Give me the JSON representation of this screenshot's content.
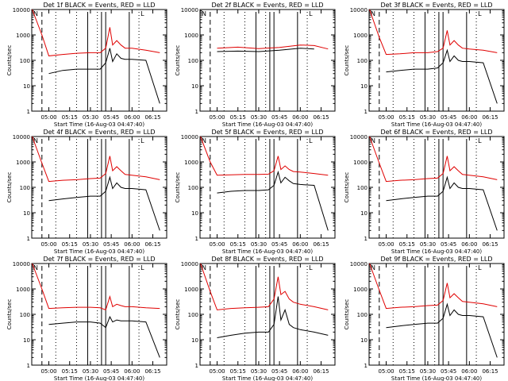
{
  "figure": {
    "x_ticks": [
      "05:00",
      "05:15",
      "05:30",
      "05:45",
      "06:00",
      "06:15"
    ],
    "y_ticks": [
      "1",
      "10",
      "100",
      "1000",
      "10000"
    ],
    "ylabel": "Counts/sec",
    "xlabel": "Start Time (16-Aug-03 04:47:40)",
    "corner_marks": [
      "N",
      "L"
    ],
    "colors": {
      "events": "#000000",
      "lld": "#e00000",
      "axes": "#000000"
    }
  },
  "chart_data": [
    {
      "type": "line",
      "title": "Det 1f BLACK = Events, RED = LLD",
      "xlabel": "Start Time (16-Aug-03 04:47:40)",
      "ylabel": "Counts/sec",
      "ylog": true,
      "ylim": [
        1,
        10000
      ],
      "xlim": [
        "04:47:40",
        "06:25:00"
      ],
      "x": [
        "04:48",
        "04:55",
        "05:00",
        "05:10",
        "05:20",
        "05:30",
        "05:37",
        "05:41",
        "05:44",
        "05:46",
        "05:49",
        "05:52",
        "05:55",
        "06:00",
        "06:10",
        "06:20"
      ],
      "series": [
        {
          "name": "BLACK = Events",
          "values": [
            null,
            null,
            30,
            40,
            45,
            45,
            45,
            80,
            300,
            90,
            180,
            120,
            110,
            110,
            100,
            2
          ]
        },
        {
          "name": "RED = LLD",
          "values": [
            10000,
            1000,
            150,
            170,
            190,
            200,
            200,
            300,
            2000,
            400,
            600,
            400,
            300,
            300,
            250,
            200
          ]
        }
      ]
    },
    {
      "type": "line",
      "title": "Det 2f BLACK = Events, RED = LLD",
      "xlabel": "Start Time (16-Aug-03 04:47:40)",
      "ylabel": "Counts/sec",
      "ylog": true,
      "ylim": [
        1,
        10000
      ],
      "xlim": [
        "04:47:40",
        "06:25:00"
      ],
      "x": [
        "04:48",
        "05:00",
        "05:15",
        "05:30",
        "05:45",
        "06:00",
        "06:10",
        "06:20"
      ],
      "series": [
        {
          "name": "BLACK = Events",
          "values": [
            null,
            220,
            230,
            220,
            250,
            300,
            280,
            null
          ]
        },
        {
          "name": "RED = LLD",
          "values": [
            null,
            300,
            330,
            290,
            320,
            400,
            380,
            280
          ]
        }
      ]
    },
    {
      "type": "line",
      "title": "Det 3f BLACK = Events, RED = LLD",
      "xlabel": "Start Time (16-Aug-03 04:47:40)",
      "ylabel": "Counts/sec",
      "ylog": true,
      "ylim": [
        1,
        10000
      ],
      "xlim": [
        "04:47:40",
        "06:25:00"
      ],
      "x": [
        "04:48",
        "04:55",
        "05:00",
        "05:10",
        "05:20",
        "05:30",
        "05:37",
        "05:41",
        "05:44",
        "05:46",
        "05:49",
        "05:52",
        "05:55",
        "06:00",
        "06:10",
        "06:20"
      ],
      "series": [
        {
          "name": "BLACK = Events",
          "values": [
            null,
            null,
            35,
            40,
            45,
            45,
            50,
            80,
            250,
            90,
            150,
            100,
            90,
            90,
            80,
            2
          ]
        },
        {
          "name": "RED = LLD",
          "values": [
            10000,
            800,
            170,
            180,
            200,
            200,
            220,
            300,
            1500,
            400,
            600,
            400,
            300,
            280,
            250,
            200
          ]
        }
      ]
    },
    {
      "type": "line",
      "title": "Det 4f BLACK = Events, RED = LLD",
      "xlabel": "Start Time (16-Aug-03 04:47:40)",
      "ylabel": "Counts/sec",
      "ylog": true,
      "ylim": [
        1,
        10000
      ],
      "xlim": [
        "04:47:40",
        "06:25:00"
      ],
      "x": [
        "04:48",
        "04:55",
        "05:00",
        "05:10",
        "05:20",
        "05:30",
        "05:37",
        "05:41",
        "05:44",
        "05:46",
        "05:49",
        "05:52",
        "05:55",
        "06:00",
        "06:10",
        "06:20"
      ],
      "series": [
        {
          "name": "BLACK = Events",
          "values": [
            null,
            null,
            30,
            35,
            40,
            45,
            45,
            70,
            250,
            90,
            150,
            100,
            90,
            90,
            80,
            2
          ]
        },
        {
          "name": "RED = LLD",
          "values": [
            10000,
            900,
            170,
            190,
            200,
            220,
            230,
            350,
            1700,
            450,
            650,
            450,
            320,
            300,
            260,
            200
          ]
        }
      ]
    },
    {
      "type": "line",
      "title": "Det 5f BLACK = Events, RED = LLD",
      "xlabel": "Start Time (16-Aug-03 04:47:40)",
      "ylabel": "Counts/sec",
      "ylog": true,
      "ylim": [
        1,
        10000
      ],
      "xlim": [
        "04:47:40",
        "06:25:00"
      ],
      "x": [
        "04:48",
        "04:55",
        "05:00",
        "05:10",
        "05:20",
        "05:30",
        "05:37",
        "05:41",
        "05:44",
        "05:46",
        "05:49",
        "05:52",
        "05:55",
        "06:00",
        "06:10",
        "06:20"
      ],
      "series": [
        {
          "name": "BLACK = Events",
          "values": [
            null,
            null,
            60,
            70,
            75,
            75,
            80,
            120,
            400,
            150,
            250,
            180,
            140,
            130,
            120,
            2
          ]
        },
        {
          "name": "RED = LLD",
          "values": [
            10000,
            1000,
            300,
            310,
            320,
            320,
            330,
            450,
            1700,
            500,
            700,
            500,
            420,
            400,
            350,
            300
          ]
        }
      ]
    },
    {
      "type": "line",
      "title": "Det 6f BLACK = Events, RED = LLD",
      "xlabel": "Start Time (16-Aug-03 04:47:40)",
      "ylabel": "Counts/sec",
      "ylog": true,
      "ylim": [
        1,
        10000
      ],
      "xlim": [
        "04:47:40",
        "06:25:00"
      ],
      "x": [
        "04:48",
        "04:55",
        "05:00",
        "05:10",
        "05:20",
        "05:30",
        "05:37",
        "05:41",
        "05:44",
        "05:46",
        "05:49",
        "05:52",
        "05:55",
        "06:00",
        "06:10",
        "06:20"
      ],
      "series": [
        {
          "name": "BLACK = Events",
          "values": [
            null,
            null,
            30,
            35,
            40,
            45,
            45,
            70,
            250,
            90,
            150,
            100,
            90,
            90,
            80,
            2
          ]
        },
        {
          "name": "RED = LLD",
          "values": [
            10000,
            900,
            170,
            190,
            200,
            220,
            230,
            350,
            1700,
            450,
            650,
            450,
            320,
            300,
            260,
            200
          ]
        }
      ]
    },
    {
      "type": "line",
      "title": "Det 7f BLACK = Events, RED = LLD",
      "xlabel": "Start Time (16-Aug-03 04:47:40)",
      "ylabel": "Counts/sec",
      "ylog": true,
      "ylim": [
        1,
        10000
      ],
      "xlim": [
        "04:47:40",
        "06:25:00"
      ],
      "x": [
        "04:48",
        "04:55",
        "05:00",
        "05:10",
        "05:20",
        "05:30",
        "05:37",
        "05:41",
        "05:44",
        "05:46",
        "05:49",
        "05:52",
        "05:55",
        "06:00",
        "06:10",
        "06:20"
      ],
      "series": [
        {
          "name": "BLACK = Events",
          "values": [
            null,
            null,
            40,
            45,
            50,
            50,
            45,
            30,
            80,
            50,
            60,
            55,
            55,
            55,
            50,
            2
          ]
        },
        {
          "name": "RED = LLD",
          "values": [
            10000,
            1000,
            170,
            180,
            190,
            190,
            180,
            150,
            500,
            200,
            250,
            220,
            200,
            200,
            180,
            170
          ]
        }
      ]
    },
    {
      "type": "line",
      "title": "Det 8f BLACK = Events, RED = LLD",
      "xlabel": "Start Time (16-Aug-03 04:47:40)",
      "ylabel": "Counts/sec",
      "ylog": true,
      "ylim": [
        1,
        10000
      ],
      "xlim": [
        "04:47:40",
        "06:25:00"
      ],
      "x": [
        "04:48",
        "04:55",
        "05:00",
        "05:10",
        "05:20",
        "05:30",
        "05:37",
        "05:41",
        "05:44",
        "05:46",
        "05:49",
        "05:52",
        "05:55",
        "06:00",
        "06:10",
        "06:20"
      ],
      "series": [
        {
          "name": "BLACK = Events",
          "values": [
            null,
            null,
            12,
            15,
            18,
            20,
            20,
            40,
            500,
            60,
            150,
            40,
            30,
            25,
            20,
            15
          ]
        },
        {
          "name": "RED = LLD",
          "values": [
            10000,
            800,
            150,
            170,
            180,
            190,
            200,
            400,
            3000,
            600,
            800,
            400,
            300,
            250,
            200,
            150
          ]
        }
      ]
    },
    {
      "type": "line",
      "title": "Det 9f BLACK = Events, RED = LLD",
      "xlabel": "Start Time (16-Aug-03 04:47:40)",
      "ylabel": "Counts/sec",
      "ylog": true,
      "ylim": [
        1,
        10000
      ],
      "xlim": [
        "04:47:40",
        "06:25:00"
      ],
      "x": [
        "04:48",
        "04:55",
        "05:00",
        "05:10",
        "05:20",
        "05:30",
        "05:37",
        "05:41",
        "05:44",
        "05:46",
        "05:49",
        "05:52",
        "05:55",
        "06:00",
        "06:10",
        "06:20"
      ],
      "series": [
        {
          "name": "BLACK = Events",
          "values": [
            null,
            null,
            30,
            35,
            40,
            45,
            45,
            70,
            250,
            90,
            150,
            100,
            90,
            90,
            80,
            2
          ]
        },
        {
          "name": "RED = LLD",
          "values": [
            10000,
            900,
            170,
            190,
            200,
            220,
            230,
            350,
            1700,
            450,
            650,
            450,
            320,
            300,
            260,
            200
          ]
        }
      ]
    }
  ]
}
